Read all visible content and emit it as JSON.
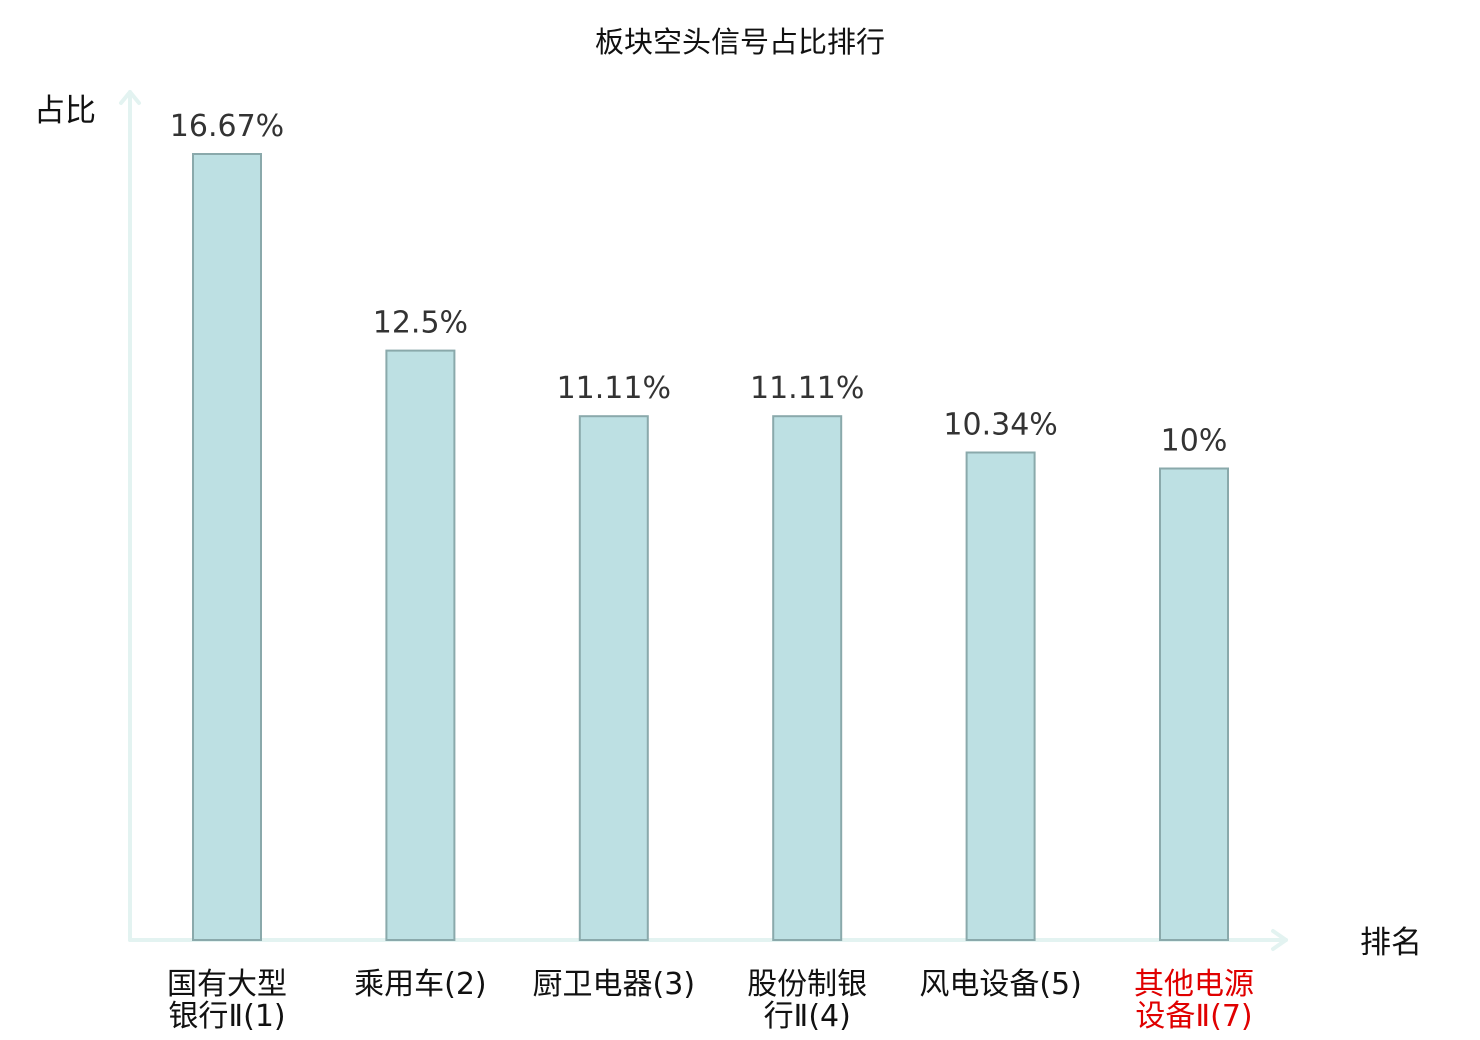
{
  "chart_data": {
    "type": "bar",
    "title": "板块空头信号占比排行",
    "ylabel": "占比",
    "xlabel": "排名",
    "ylim": [
      0,
      16.67
    ],
    "grid": false,
    "legend": "none",
    "bar_fill": "#bde0e3",
    "bar_stroke": "#8aa9ab",
    "highlight_color": "#e00000",
    "axis_color": "#e3f3f1",
    "categories": [
      {
        "lines": [
          "国有大型",
          "银行Ⅱ(1)"
        ],
        "highlight": false
      },
      {
        "lines": [
          "乘用车(2)"
        ],
        "highlight": false
      },
      {
        "lines": [
          "厨卫电器(3)"
        ],
        "highlight": false
      },
      {
        "lines": [
          "股份制银",
          "行Ⅱ(4)"
        ],
        "highlight": false
      },
      {
        "lines": [
          "风电设备(5)"
        ],
        "highlight": false
      },
      {
        "lines": [
          "其他电源",
          "设备Ⅱ(7)"
        ],
        "highlight": true
      }
    ],
    "values": [
      16.67,
      12.5,
      11.11,
      11.11,
      10.34,
      10
    ],
    "value_labels": [
      "16.67%",
      "12.5%",
      "11.11%",
      "11.11%",
      "10.34%",
      "10%"
    ]
  }
}
